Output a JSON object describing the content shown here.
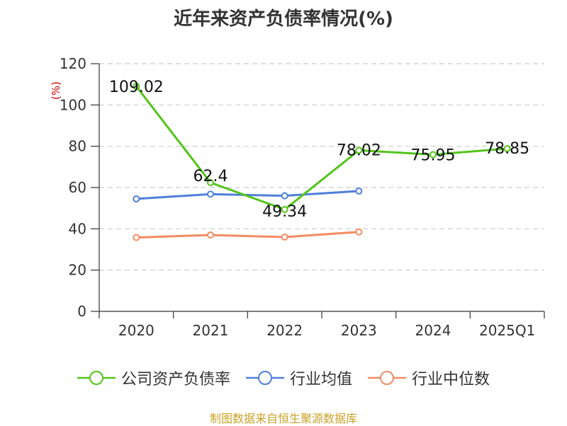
{
  "chart_data": {
    "type": "line",
    "title": "近年来资产负债率情况(%)",
    "ylabel": "(%)",
    "ylim": [
      0,
      120
    ],
    "yticks": [
      "0",
      "20",
      "40",
      "60",
      "80",
      "100",
      "120"
    ],
    "categories": [
      "2020",
      "2021",
      "2022",
      "2023",
      "2024",
      "2025Q1"
    ],
    "grid": true,
    "legend_position": "bottom",
    "series": [
      {
        "name": "公司资产负债率",
        "color": "#52c41a",
        "values": [
          109.02,
          62.4,
          49.34,
          78.02,
          75.95,
          78.85
        ],
        "labels": [
          "109.02",
          "62.4",
          "49.34",
          "78.02",
          "75.95",
          "78.85"
        ]
      },
      {
        "name": "行业均值",
        "color": "#4f7fd9",
        "values": [
          54.5,
          56.8,
          56.0,
          58.3,
          null,
          null
        ]
      },
      {
        "name": "行业中位数",
        "color": "#f28b61",
        "values": [
          35.8,
          37.0,
          36.0,
          38.5,
          null,
          null
        ]
      }
    ]
  },
  "source": "制图数据来自恒生聚源数据库"
}
